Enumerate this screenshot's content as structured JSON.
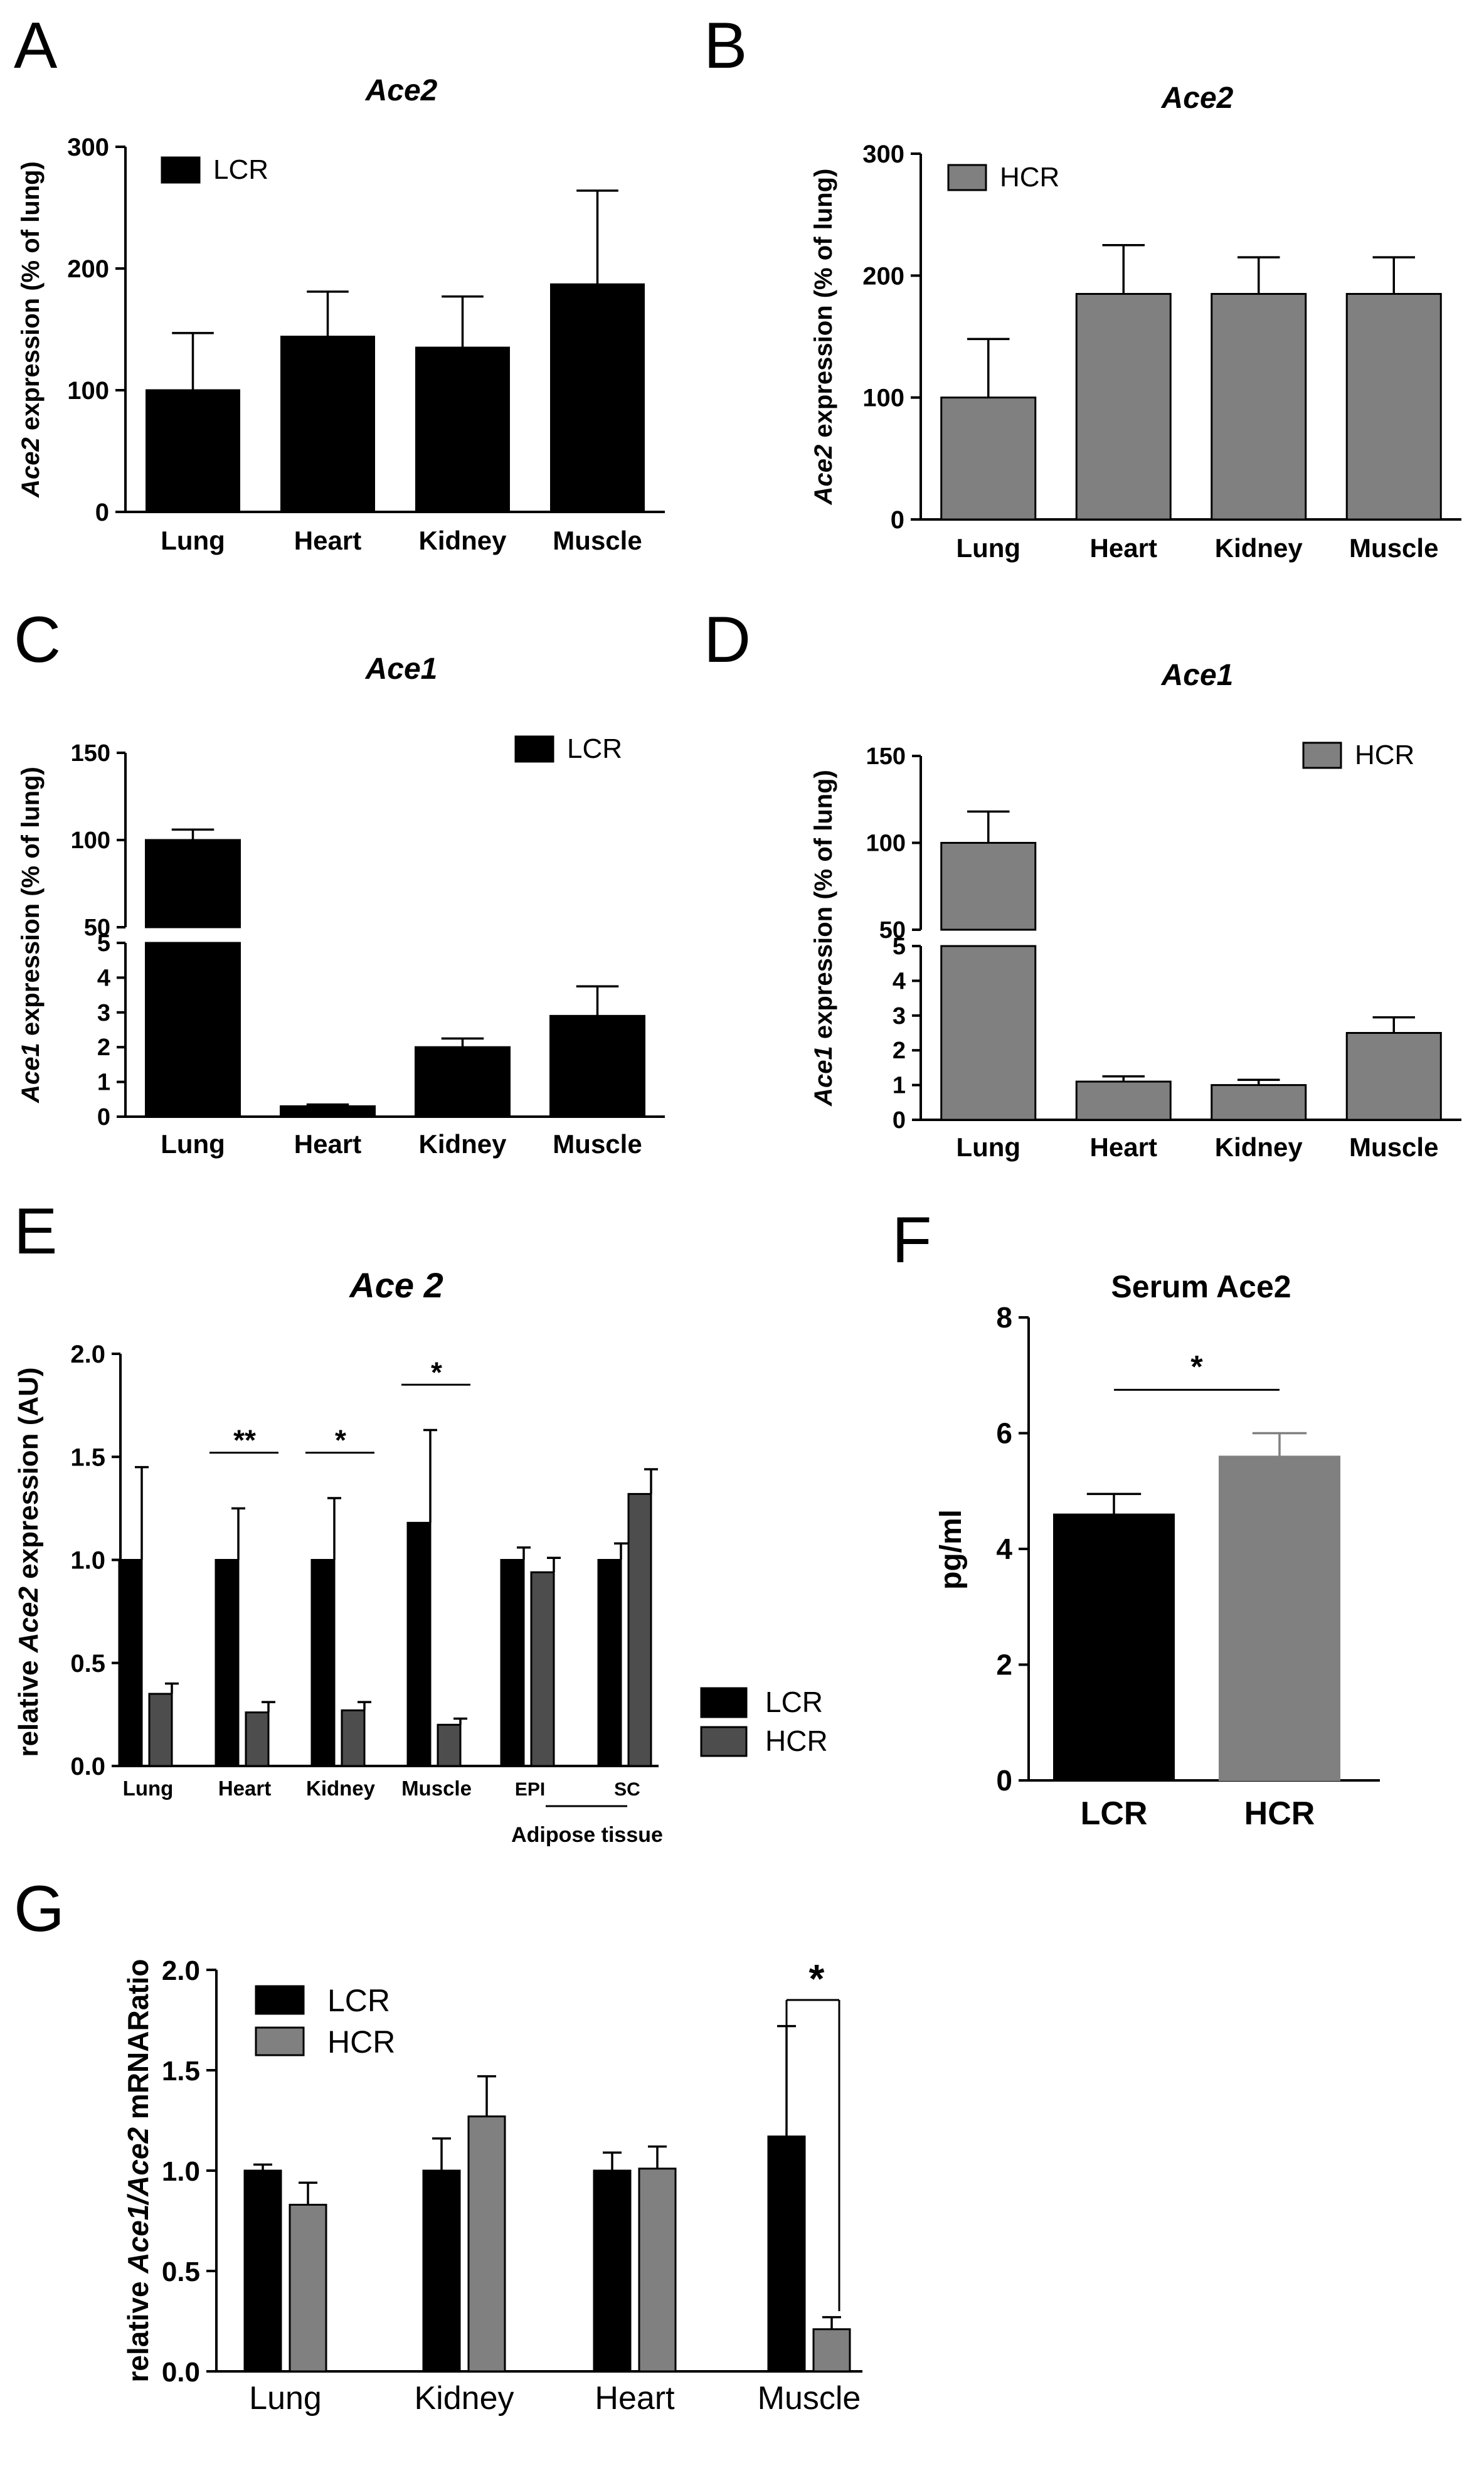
{
  "chart_data": [
    {
      "panel": "A",
      "type": "bar",
      "title": "Ace2",
      "ylabel_italic": "Ace2",
      "ylabel_rest": " expression (% of lung)",
      "categories": [
        "Lung",
        "Heart",
        "Kidney",
        "Muscle"
      ],
      "series": [
        {
          "name": "LCR",
          "color": "#000000",
          "values": [
            100,
            144,
            135,
            187
          ],
          "errors": [
            47,
            37,
            42,
            77
          ]
        }
      ],
      "ylim": [
        0,
        300
      ],
      "yticks": [
        "0",
        "100",
        "200",
        "300"
      ],
      "legend": "top-left"
    },
    {
      "panel": "B",
      "type": "bar",
      "title": "Ace2",
      "ylabel_italic": "Ace2",
      "ylabel_rest": " expression (% of lung)",
      "categories": [
        "Lung",
        "Heart",
        "Kidney",
        "Muscle"
      ],
      "series": [
        {
          "name": "HCR",
          "color": "#808080",
          "values": [
            100,
            185,
            185,
            185
          ],
          "errors": [
            48,
            40,
            30,
            30
          ]
        }
      ],
      "ylim": [
        0,
        300
      ],
      "yticks": [
        "0",
        "100",
        "200",
        "300"
      ],
      "legend": "top-left"
    },
    {
      "panel": "C",
      "type": "bar",
      "title": "Ace1",
      "ylabel_italic": "Ace1",
      "ylabel_rest": " expression (% of lung)",
      "categories": [
        "Lung",
        "Heart",
        "Kidney",
        "Muscle"
      ],
      "series": [
        {
          "name": "LCR",
          "color": "#000000",
          "values": [
            100,
            0.3,
            2.0,
            2.9
          ],
          "errors": [
            6,
            0.05,
            0.25,
            0.85
          ]
        }
      ],
      "broken_axis": {
        "lower": [
          0,
          5
        ],
        "upper": [
          50,
          150
        ]
      },
      "yticks_lower": [
        "0",
        "1",
        "2",
        "3",
        "4",
        "5"
      ],
      "yticks_upper": [
        "50",
        "100",
        "150"
      ],
      "legend": "top-right"
    },
    {
      "panel": "D",
      "type": "bar",
      "title": "Ace1",
      "ylabel_italic": "Ace1",
      "ylabel_rest": " expression (% of lung)",
      "categories": [
        "Lung",
        "Heart",
        "Kidney",
        "Muscle"
      ],
      "series": [
        {
          "name": "HCR",
          "color": "#808080",
          "values": [
            100,
            1.1,
            1.0,
            2.5
          ],
          "errors": [
            18,
            0.15,
            0.15,
            0.45
          ]
        }
      ],
      "broken_axis": {
        "lower": [
          0,
          5
        ],
        "upper": [
          50,
          150
        ]
      },
      "yticks_lower": [
        "0",
        "1",
        "2",
        "3",
        "4",
        "5"
      ],
      "yticks_upper": [
        "50",
        "100",
        "150"
      ],
      "legend": "top-right"
    },
    {
      "panel": "E",
      "type": "bar",
      "title": "Ace 2",
      "ylabel_prefix": "relative ",
      "ylabel_italic": "Ace2",
      "ylabel_rest": " expression (AU)",
      "categories": [
        "Lung",
        "Heart",
        "Kidney",
        "Muscle",
        "EPI",
        "SC"
      ],
      "group_label": "Adipose tissue",
      "series": [
        {
          "name": "LCR",
          "color": "#000000",
          "values": [
            1.0,
            1.0,
            1.0,
            1.18,
            1.0,
            1.0
          ],
          "errors": [
            0.45,
            0.25,
            0.3,
            0.45,
            0.06,
            0.08
          ]
        },
        {
          "name": "HCR",
          "color": "#4d4d4d",
          "values": [
            0.35,
            0.26,
            0.27,
            0.2,
            0.94,
            1.32
          ],
          "errors": [
            0.05,
            0.05,
            0.04,
            0.03,
            0.07,
            0.12
          ]
        }
      ],
      "ylim": [
        0,
        2.0
      ],
      "yticks": [
        "0.0",
        "0.5",
        "1.0",
        "1.5",
        "2.0"
      ],
      "significance": [
        "",
        "**",
        "*",
        "*",
        "",
        ""
      ],
      "legend": "right"
    },
    {
      "panel": "F",
      "type": "bar",
      "title": "Serum Ace2",
      "ylabel": "pg/ml",
      "categories": [
        "LCR",
        "HCR"
      ],
      "series": [
        {
          "name": "Serum Ace2",
          "colors": [
            "#000000",
            "#808080"
          ],
          "values": [
            4.6,
            5.6
          ],
          "errors": [
            0.35,
            0.4
          ]
        }
      ],
      "ylim": [
        0,
        8
      ],
      "yticks": [
        "0",
        "2",
        "4",
        "6",
        "8"
      ],
      "significance": "*"
    },
    {
      "panel": "G",
      "type": "bar",
      "title": "",
      "ylabel_prefix": "relative ",
      "ylabel_italic": "Ace1/Ace2",
      "ylabel_rest": " mRNARatio",
      "categories": [
        "Lung",
        "Kidney",
        "Heart",
        "Muscle"
      ],
      "series": [
        {
          "name": "LCR",
          "color": "#000000",
          "values": [
            1.0,
            1.0,
            1.0,
            1.17
          ],
          "errors": [
            0.03,
            0.16,
            0.09,
            0.55
          ]
        },
        {
          "name": "HCR",
          "color": "#808080",
          "values": [
            0.83,
            1.27,
            1.01,
            0.21
          ],
          "errors": [
            0.11,
            0.2,
            0.11,
            0.06
          ]
        }
      ],
      "ylim": [
        0,
        2.0
      ],
      "yticks": [
        "0.0",
        "0.5",
        "1.0",
        "1.5",
        "2.0"
      ],
      "significance": [
        "",
        "",
        "",
        "*"
      ],
      "legend": "top-left"
    }
  ]
}
